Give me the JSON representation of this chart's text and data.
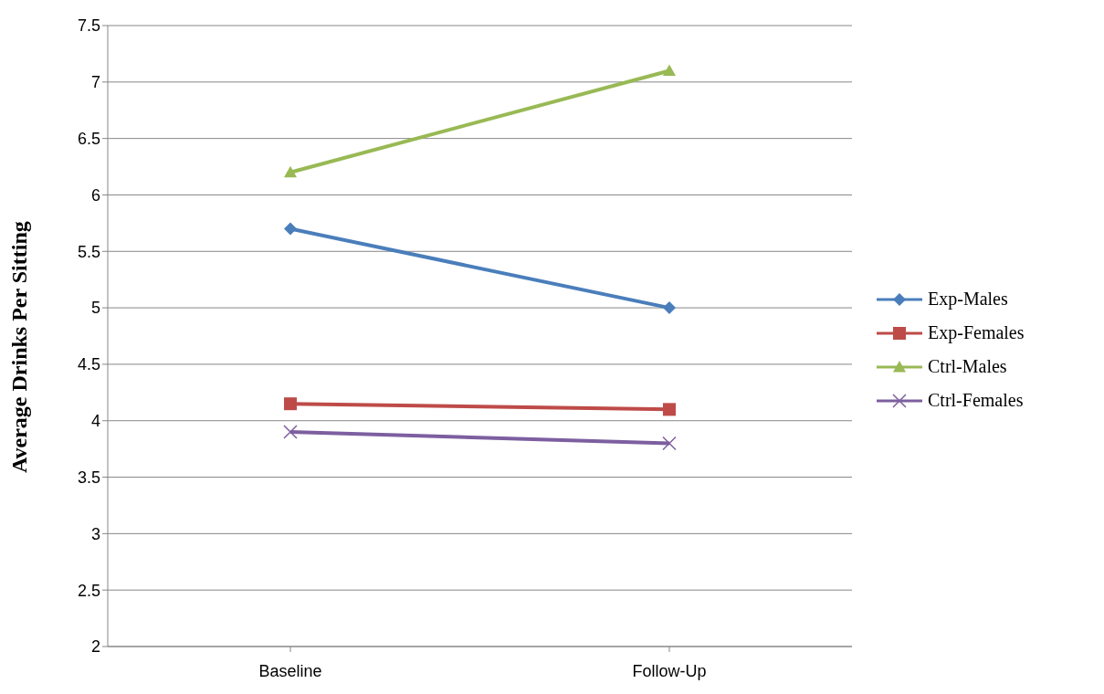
{
  "chart_data": {
    "type": "line",
    "ylabel": "Average Drinks Per Sitting",
    "categories": [
      "Baseline",
      "Follow-Up"
    ],
    "series": [
      {
        "name": "Exp-Males",
        "color": "#4a7ebb",
        "values": [
          5.7,
          5.0
        ],
        "marker": "diamond"
      },
      {
        "name": "Exp-Females",
        "color": "#be4b48",
        "values": [
          4.15,
          4.1
        ],
        "marker": "square"
      },
      {
        "name": "Ctrl-Males",
        "color": "#98b954",
        "values": [
          6.2,
          7.1
        ],
        "marker": "triangle"
      },
      {
        "name": "Ctrl-Females",
        "color": "#7d5fa0",
        "values": [
          3.9,
          3.8
        ],
        "marker": "cross"
      }
    ],
    "ylim": [
      2,
      7.5
    ],
    "yticks": [
      2,
      2.5,
      3,
      3.5,
      4,
      4.5,
      5,
      5.5,
      6,
      6.5,
      7,
      7.5
    ],
    "grid": "y",
    "legend": "right",
    "line_style": "solid"
  }
}
